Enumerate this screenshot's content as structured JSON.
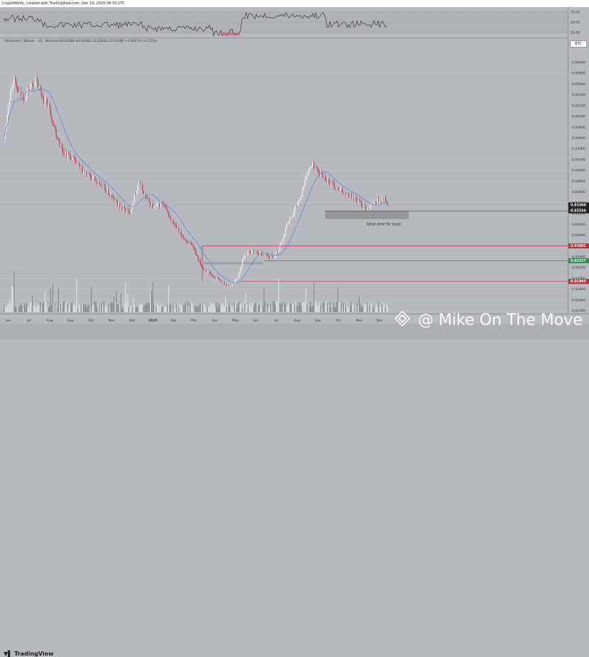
{
  "header": {
    "credit": "CryptoWolfe, created with TradingView.com, Dec 19, 2025 08:30 UTC"
  },
  "legend": {
    "text": "Ethereum / Bitcoin · 1D · Binance  O0.03286  H0.03382  L0.03264  C0.03360  +0.00074 (+2.25%)"
  },
  "currency_badge": "BTC",
  "footer": {
    "brand": "TradingView"
  },
  "watermark": {
    "text": "@ Mike On The Move"
  },
  "annotation": {
    "text": "Ideal zone for buys."
  },
  "colors": {
    "up": "#ffffff",
    "down": "#c0303a",
    "ma": "#4a8fd6",
    "zone": "#8c8d92",
    "res_line": "#c0303a",
    "sup_line": "#2e8b4f"
  },
  "chart_data": {
    "type": "candlestick",
    "title": "",
    "rsi_ticks": [
      "75.00",
      "50.00",
      "25.00"
    ],
    "price_ticks": [
      "0.06000",
      "0.05800",
      "0.05600",
      "0.05400",
      "0.05200",
      "0.05000",
      "0.04800",
      "0.04600",
      "0.04400",
      "0.04200",
      "0.04000",
      "0.03800",
      "0.03600",
      "0.03400",
      "0.03200",
      "0.03000",
      "0.02800",
      "0.02600",
      "0.02400",
      "0.02200",
      "0.02000",
      "0.01800",
      "0.01600",
      "0.01400"
    ],
    "time_ticks": [
      "Jun",
      "Jul",
      "Aug",
      "Sep",
      "Oct",
      "Nov",
      "Dec",
      "2025",
      "Feb",
      "Mar",
      "Apr",
      "May",
      "Jun",
      "Jul",
      "Aug",
      "Sep",
      "Oct",
      "Nov",
      "Dec"
    ],
    "levels": [
      {
        "label": "0.03360",
        "sublabel": "1d 10h",
        "kind": "price"
      },
      {
        "label": "0.03250",
        "kind": "zone_top"
      },
      {
        "label": "0.02601",
        "kind": "resistance"
      },
      {
        "label": "0.02327",
        "kind": "support"
      },
      {
        "label": "0.01943",
        "kind": "support_low"
      }
    ],
    "zones": [
      {
        "low": 0.031,
        "high": 0.0325,
        "label": "Ideal zone for buys."
      }
    ]
  }
}
